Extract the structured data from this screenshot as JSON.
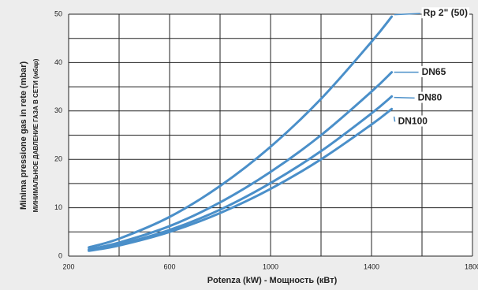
{
  "chart_data": {
    "type": "line",
    "ylabel": "Minima pressione gas in rete  (mbar)",
    "ylabel2": "МИНИМАЛЬНОЕ ДАВЛЕНИЕ ГАЗА В СЕТИ (мбар)",
    "xlabel": "Potenza (kW) -  Мощность  (кВт)",
    "x": [
      280,
      400,
      600,
      800,
      1000,
      1200,
      1400,
      1480
    ],
    "series": [
      {
        "name": "Rp 2\" (50)",
        "color": "#4a8fc9",
        "values": [
          1.8,
          3.6,
          8.1,
          14.5,
          22.6,
          32.5,
          44.3,
          49.5
        ]
      },
      {
        "name": "DN65",
        "color": "#4a8fc9",
        "values": [
          1.4,
          2.8,
          6.2,
          11.1,
          17.4,
          25.0,
          34.0,
          38.0
        ]
      },
      {
        "name": "DN80",
        "color": "#4a8fc9",
        "values": [
          1.2,
          2.4,
          5.4,
          9.6,
          15.1,
          21.7,
          29.5,
          33.0
        ]
      },
      {
        "name": "DN100",
        "color": "#4a8fc9",
        "values": [
          1.1,
          2.2,
          5.0,
          8.9,
          13.9,
          20.0,
          27.2,
          30.4
        ]
      }
    ],
    "xlim": [
      200,
      1800
    ],
    "xticks": [
      200,
      600,
      1000,
      1400,
      1800
    ],
    "xgrid": [
      200,
      400,
      600,
      800,
      1000,
      1200,
      1400,
      1600,
      1800
    ],
    "ylim": [
      0,
      50
    ],
    "yticks": [
      0,
      10,
      20,
      30,
      40,
      50
    ],
    "ygrid": [
      0,
      5,
      10,
      15,
      20,
      25,
      30,
      35,
      40,
      45,
      50
    ],
    "grid": true
  }
}
